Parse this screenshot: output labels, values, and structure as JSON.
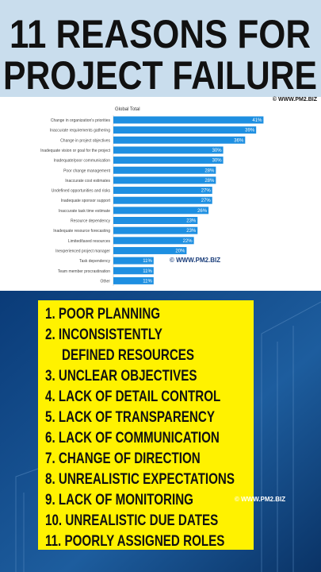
{
  "header": {
    "title_lines": [
      "11 REASONS FOR",
      "PROJECT FAILURE"
    ]
  },
  "watermarks": [
    "© WWW.PM2.BIZ",
    "© WWW.PM2.BIZ",
    "© WWW.PM2.BIZ"
  ],
  "chart_data": {
    "type": "bar",
    "orientation": "horizontal",
    "title": "Global Total",
    "categories": [
      "Change in organization's priorities",
      "Inaccurate requirements gathering",
      "Change in project objectives",
      "Inadequate vision or goal for the project",
      "Inadequate/poor communication",
      "Poor change management",
      "Inaccurate cost estimates",
      "Undefined opportunities and risks",
      "Inadequate sponsor support",
      "Inaccurate task time estimate",
      "Resource dependency",
      "Inadequate resource forecasting",
      "Limited/taxed resources",
      "Inexperienced project manager",
      "Task dependency",
      "Team member procrastination",
      "Other"
    ],
    "values": [
      41,
      39,
      36,
      30,
      30,
      28,
      28,
      27,
      27,
      26,
      23,
      23,
      22,
      20,
      11,
      11,
      11
    ],
    "value_labels": [
      "41%",
      "39%",
      "36%",
      "30%",
      "30%",
      "28%",
      "28%",
      "27%",
      "27%",
      "26%",
      "23%",
      "23%",
      "22%",
      "20%",
      "11%",
      "11%",
      "11%"
    ],
    "color": "#1e8fe1",
    "xlim": [
      0,
      50
    ]
  },
  "reasons": [
    [
      "1. POOR PLANNING"
    ],
    [
      "2. INCONSISTENTLY",
      "DEFINED RESOURCES"
    ],
    [
      "3. UNCLEAR OBJECTIVES"
    ],
    [
      "4. LACK OF DETAIL CONTROL"
    ],
    [
      "5. LACK OF TRANSPARENCY"
    ],
    [
      "6. LACK OF COMMUNICATION"
    ],
    [
      "7. CHANGE OF DIRECTION"
    ],
    [
      "8. UNREALISTIC EXPECTATIONS"
    ],
    [
      "9. LACK OF MONITORING"
    ],
    [
      "10. UNREALISTIC DUE DATES"
    ],
    [
      "11. POORLY ASSIGNED ROLES"
    ]
  ]
}
